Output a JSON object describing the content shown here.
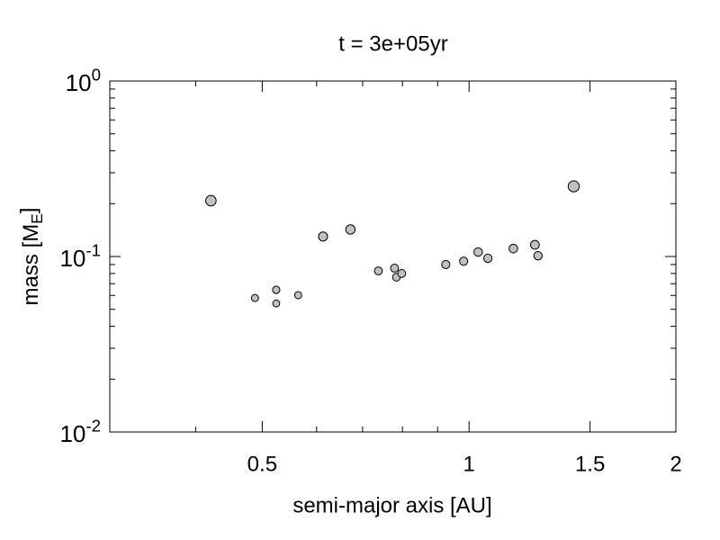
{
  "chart_data": {
    "type": "scatter",
    "title": "t = 3e+05yr",
    "x_label": "semi-major axis [AU]",
    "y_label": "mass [M_E]",
    "x": [
      0.421,
      0.488,
      0.524,
      0.524,
      0.564,
      0.613,
      0.672,
      0.738,
      0.779,
      0.784,
      0.798,
      0.925,
      0.982,
      1.031,
      1.065,
      1.16,
      1.247,
      1.26,
      1.42
    ],
    "values": [
      0.208,
      0.058,
      0.0646,
      0.054,
      0.0602,
      0.13,
      0.1426,
      0.0828,
      0.0858,
      0.0762,
      0.08,
      0.09,
      0.094,
      0.106,
      0.0977,
      0.111,
      0.1166,
      0.101,
      0.251
    ],
    "color": "#c0c0c0",
    "xscale": "log",
    "yscale": "log",
    "xlim": [
      0.3,
      2
    ],
    "ylim": [
      0.01,
      1
    ],
    "xticks": [
      0.5,
      1,
      1.5,
      2
    ],
    "xminorticks": [
      0.4,
      0.6,
      0.7,
      0.8,
      0.9
    ],
    "yticks": [
      {
        "value": 0.01,
        "label": "10^-2"
      },
      {
        "value": 0.1,
        "label": "10^-1"
      },
      {
        "value": 1,
        "label": "10^0"
      }
    ],
    "yminorticks": [
      0.02,
      0.03,
      0.04,
      0.05,
      0.06,
      0.07,
      0.08,
      0.09,
      0.2,
      0.3,
      0.4,
      0.5,
      0.6,
      0.7,
      0.8,
      0.9
    ]
  }
}
